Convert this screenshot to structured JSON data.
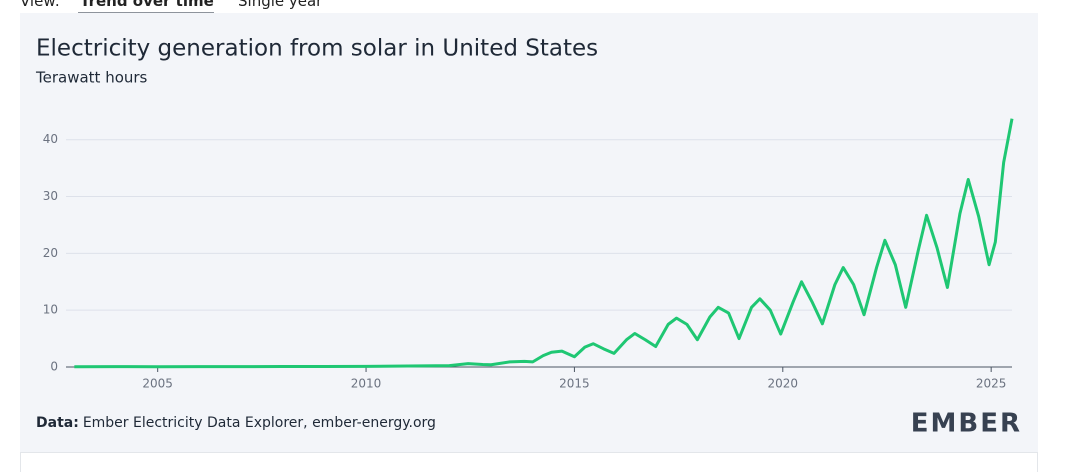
{
  "tabs": {
    "label": "View:",
    "items": [
      "Trend over time",
      "Single year"
    ]
  },
  "brand": "EMBER",
  "chart_data": {
    "type": "line",
    "title": "Electricity generation from solar in United States",
    "subtitle": "Terawatt hours",
    "source_label": "Data:",
    "source": "Ember Electricity Data Explorer, ember-energy.org",
    "x": [
      2003,
      2004,
      2005,
      2006,
      2007,
      2008,
      2009,
      2010,
      2011,
      2012,
      2012.45,
      2012.8,
      2013,
      2013.45,
      2013.8,
      2014,
      2014.25,
      2014.45,
      2014.7,
      2015,
      2015.25,
      2015.45,
      2015.7,
      2015.95,
      2016.25,
      2016.45,
      2016.7,
      2016.95,
      2017.25,
      2017.45,
      2017.7,
      2017.95,
      2018.25,
      2018.45,
      2018.7,
      2018.95,
      2019.25,
      2019.45,
      2019.7,
      2019.95,
      2020.25,
      2020.45,
      2020.7,
      2020.95,
      2021.25,
      2021.45,
      2021.7,
      2021.95,
      2022.25,
      2022.45,
      2022.7,
      2022.95,
      2023.25,
      2023.45,
      2023.7,
      2023.95,
      2024.25,
      2024.45,
      2024.7,
      2024.95,
      2025.1,
      2025.3,
      2025.5
    ],
    "series": [
      {
        "name": "Solar",
        "color": "#1fc773",
        "values": [
          0.05,
          0.06,
          0.05,
          0.06,
          0.07,
          0.08,
          0.09,
          0.12,
          0.18,
          0.25,
          0.6,
          0.45,
          0.4,
          0.9,
          1.0,
          0.9,
          2.0,
          2.6,
          2.8,
          1.8,
          3.5,
          4.1,
          3.2,
          2.4,
          4.8,
          5.9,
          4.8,
          3.6,
          7.5,
          8.6,
          7.5,
          4.8,
          8.8,
          10.5,
          9.5,
          5.0,
          10.5,
          12.0,
          10.0,
          5.8,
          11.5,
          15.0,
          11.5,
          7.6,
          14.5,
          17.5,
          14.5,
          9.2,
          17.5,
          22.3,
          18.0,
          10.5,
          20.5,
          26.7,
          21.0,
          14.0,
          27.0,
          33.0,
          26.5,
          18.0,
          22.0,
          36.0,
          43.7
        ]
      }
    ],
    "xlim": [
      2002.8,
      2025.5
    ],
    "xticks": [
      2005,
      2010,
      2015,
      2020,
      2025
    ],
    "ylim": [
      0,
      44
    ],
    "yticks": [
      0,
      10,
      20,
      30,
      40
    ],
    "grid": true
  }
}
